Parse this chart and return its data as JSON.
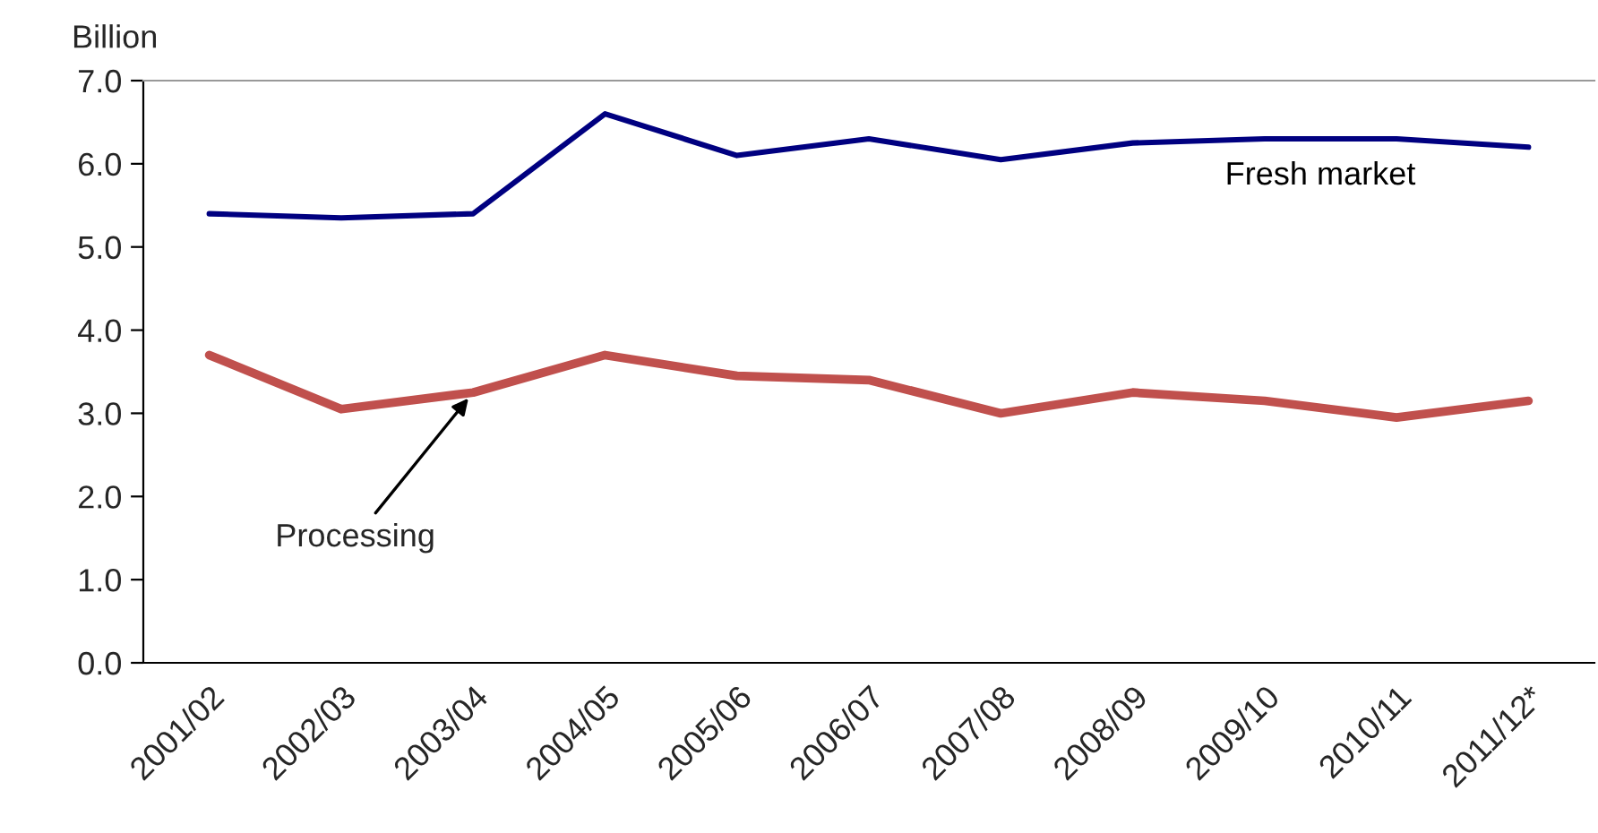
{
  "chart_data": {
    "type": "line",
    "ylabel": "Billion",
    "categories": [
      "2001/02",
      "2002/03",
      "2003/04",
      "2004/05",
      "2005/06",
      "2006/07",
      "2007/08",
      "2008/09",
      "2009/10",
      "2010/11",
      "2011/12*"
    ],
    "series": [
      {
        "name": "Fresh market",
        "color": "#000080",
        "values": [
          5.4,
          5.35,
          5.4,
          6.6,
          6.1,
          6.3,
          6.05,
          6.25,
          6.3,
          6.3,
          6.2
        ]
      },
      {
        "color": "#c0504d",
        "values": [
          3.7,
          3.05,
          3.25,
          3.7,
          3.45,
          3.4,
          3.0,
          3.25,
          3.15,
          2.95,
          3.15
        ]
      }
    ],
    "annotations": [
      {
        "text": "Processing",
        "x": "2003/04",
        "y": 3.25
      }
    ],
    "ylim": [
      0,
      7
    ],
    "yticks": [
      {
        "value": 0,
        "label": "0.0"
      },
      {
        "value": 1,
        "label": "1.0"
      },
      {
        "value": 2,
        "label": "2.0"
      },
      {
        "value": 3,
        "label": "3.0"
      },
      {
        "value": 4,
        "label": "4.0"
      },
      {
        "value": 5,
        "label": "5.0"
      },
      {
        "value": 6,
        "label": "6.0"
      },
      {
        "value": 7,
        "label": "7.0"
      }
    ],
    "grid": false,
    "legend": false,
    "marker": "none",
    "line_style": "solid"
  }
}
